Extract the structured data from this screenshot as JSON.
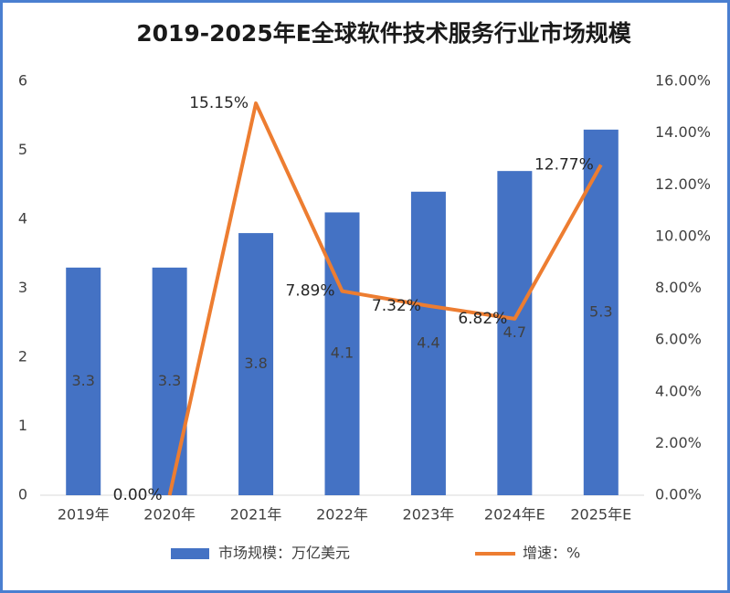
{
  "chart_data": {
    "type": "bar-line",
    "title": "2019-2025年E全球软件技术服务行业市场规模",
    "categories": [
      "2019年",
      "2020年",
      "2021年",
      "2022年",
      "2023年",
      "2024年E",
      "2025年E"
    ],
    "series": [
      {
        "name": "市场规模：万亿美元",
        "type": "bar",
        "color": "#4472c4",
        "values": [
          3.3,
          3.3,
          3.8,
          4.1,
          4.4,
          4.7,
          5.3
        ]
      },
      {
        "name": "增速：%",
        "type": "line",
        "axis": "y2",
        "color": "#ed7d31",
        "values": [
          null,
          0,
          15.15,
          7.89,
          7.32,
          6.82,
          12.77
        ],
        "value_labels": [
          null,
          "0.00%",
          "15.15%",
          "7.89%",
          "7.32%",
          "6.82%",
          "12.77%"
        ]
      }
    ],
    "ylim": [
      0,
      6
    ],
    "yticks": [
      0,
      1,
      2,
      3,
      4,
      5,
      6
    ],
    "y2lim": [
      0,
      16
    ],
    "y2ticks": [
      {
        "value": 0,
        "label": "0.00%"
      },
      {
        "value": 2,
        "label": "2.00%"
      },
      {
        "value": 4,
        "label": "4.00%"
      },
      {
        "value": 6,
        "label": "6.00%"
      },
      {
        "value": 8,
        "label": "8.00%"
      },
      {
        "value": 10,
        "label": "10.00%"
      },
      {
        "value": 12,
        "label": "12.00%"
      },
      {
        "value": 14,
        "label": "14.00%"
      },
      {
        "value": 16,
        "label": "16.00%"
      }
    ],
    "legend": "bottom"
  }
}
